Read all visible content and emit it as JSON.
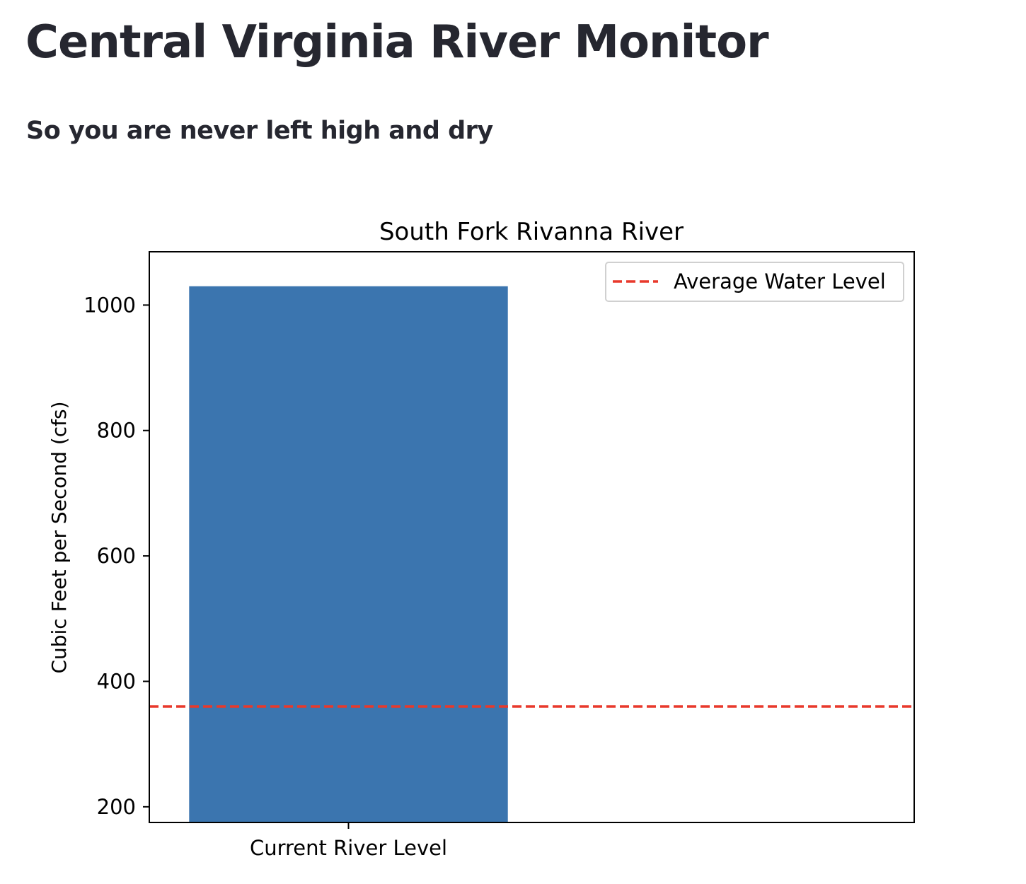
{
  "page": {
    "title": "Central Virginia River Monitor",
    "subtitle": "So you are never left high and dry"
  },
  "chart_data": {
    "type": "bar",
    "title": "South Fork Rivanna River",
    "xlabel": "",
    "ylabel": "Cubic Feet per Second (cfs)",
    "categories": [
      "Current River Level"
    ],
    "values": [
      1030
    ],
    "ylim": [
      175,
      1085
    ],
    "yticks": [
      200,
      400,
      600,
      800,
      1000
    ],
    "bar_color": "#3b75af",
    "reference_lines": [
      {
        "label": "Average Water Level",
        "value": 360,
        "color": "#e8392b",
        "style": "dashed"
      }
    ],
    "legend": {
      "placement": "top-right",
      "entries": [
        "Average Water Level"
      ]
    },
    "grid": false
  }
}
